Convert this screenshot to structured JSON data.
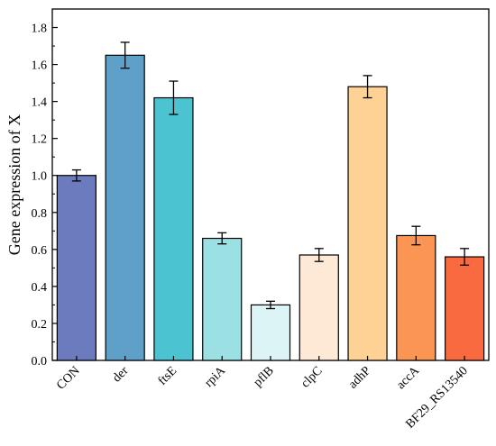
{
  "chart_data": {
    "type": "bar",
    "ylabel": "Gene expression of X",
    "xlabel": "",
    "ylim": [
      0,
      1.9
    ],
    "yticks": [
      0.0,
      0.2,
      0.4,
      0.6,
      0.8,
      1.0,
      1.2,
      1.4,
      1.6,
      1.8
    ],
    "ytick_labels": [
      "0.0",
      "0.2",
      "0.4",
      "0.6",
      "0.8",
      "1.0",
      "1.2",
      "1.4",
      "1.6",
      "1.8"
    ],
    "categories": [
      "CON",
      "der",
      "ftsE",
      "rpiA",
      "pflB",
      "clpC",
      "adhP",
      "accA",
      "BF29_RS13540"
    ],
    "values": [
      1.0,
      1.65,
      1.42,
      0.66,
      0.3,
      0.57,
      1.48,
      0.675,
      0.56
    ],
    "errors": [
      0.03,
      0.07,
      0.09,
      0.03,
      0.02,
      0.035,
      0.06,
      0.05,
      0.045
    ],
    "colors": [
      "#6b7bbd",
      "#5fa0c8",
      "#4bc3d1",
      "#9be0e3",
      "#dcf4f6",
      "#fde9d6",
      "#fed295",
      "#fb9553",
      "#fa6a40"
    ],
    "grid": false,
    "legend": "none"
  }
}
